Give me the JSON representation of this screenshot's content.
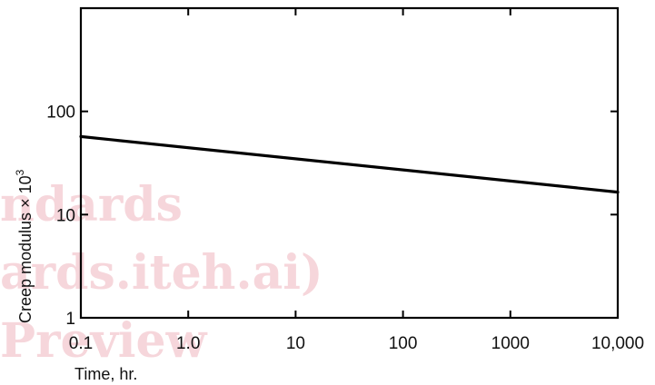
{
  "chart_data": {
    "type": "line",
    "xscale": "log",
    "yscale": "log",
    "xlabel": "Time, hr.",
    "ylabel": "Creep modulus × 10",
    "ylabel_exponent": "3",
    "xlim": [
      0.1,
      10000
    ],
    "ylim": [
      1,
      1000
    ],
    "xticks": [
      {
        "value": 0.1,
        "label": "0.1"
      },
      {
        "value": 1,
        "label": "1.0"
      },
      {
        "value": 10,
        "label": "10"
      },
      {
        "value": 100,
        "label": "100"
      },
      {
        "value": 1000,
        "label": "1000"
      },
      {
        "value": 10000,
        "label": "10,000"
      }
    ],
    "yticks": [
      {
        "value": 1,
        "label": "1"
      },
      {
        "value": 10,
        "label": "10"
      },
      {
        "value": 100,
        "label": "100"
      }
    ],
    "grid": false,
    "series": [
      {
        "x": [
          0.1,
          10000
        ],
        "y": [
          57,
          16.5
        ]
      }
    ]
  },
  "watermark": {
    "lines": [
      "ndards",
      "ards.iteh.ai)",
      "Preview"
    ],
    "color": "#f3c9cf"
  }
}
